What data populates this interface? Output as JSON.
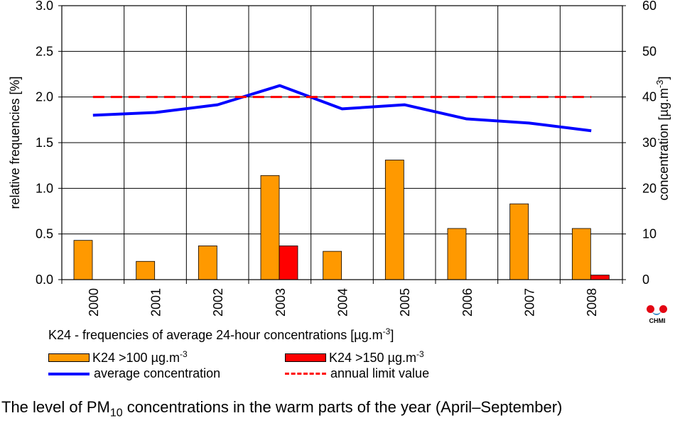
{
  "chart_data": {
    "type": "bar",
    "categories": [
      "2000",
      "2001",
      "2002",
      "2003",
      "2004",
      "2005",
      "2006",
      "2007",
      "2008"
    ],
    "series": [
      {
        "name": "K24 >100 µg.m-3",
        "axis": "left",
        "kind": "bar",
        "color": "#ff9900",
        "values": [
          0.43,
          0.2,
          0.37,
          1.14,
          0.31,
          1.31,
          0.56,
          0.83,
          0.56
        ]
      },
      {
        "name": "K24 >150 µg.m-3",
        "axis": "left",
        "kind": "bar",
        "color": "#ff0000",
        "values": [
          0.0,
          0.0,
          0.0,
          0.37,
          0.0,
          0.0,
          0.0,
          0.0,
          0.05
        ]
      },
      {
        "name": "average concentration",
        "axis": "right",
        "kind": "line",
        "color": "#0000ff",
        "values": [
          36.0,
          36.6,
          38.3,
          42.5,
          37.4,
          38.3,
          35.2,
          34.3,
          32.6
        ]
      },
      {
        "name": "annual limit value",
        "axis": "right",
        "kind": "dashed-line",
        "color": "#ff0000",
        "values": [
          40,
          40,
          40,
          40,
          40,
          40,
          40,
          40,
          40
        ]
      }
    ],
    "ylabel": "relative frequencies [%]",
    "ylim": [
      0,
      3.0
    ],
    "yticks": [
      "0.0",
      "0.5",
      "1.0",
      "1.5",
      "2.0",
      "2.5",
      "3.0"
    ],
    "y2label": "concentration [µg.m-3]",
    "y2lim": [
      0,
      60
    ],
    "y2ticks": [
      "0",
      "10",
      "20",
      "30",
      "40",
      "50",
      "60"
    ],
    "grid": true,
    "legend_position": "bottom"
  },
  "legend": {
    "title": "K24 - frequencies of average 24-hour concentrations [µg.m-3]",
    "items": [
      {
        "label": "K24 >100 µg.m-3",
        "color": "#ff9900",
        "kind": "bar"
      },
      {
        "label": "K24 >150 µg.m-3",
        "color": "#ff0000",
        "kind": "bar"
      },
      {
        "label": "average concentration",
        "color": "#0000ff",
        "kind": "line"
      },
      {
        "label": "annual limit value",
        "color": "#ff0000",
        "kind": "dashed-line"
      }
    ]
  },
  "caption": {
    "prefix": "The level of PM",
    "sub": "10",
    "suffix": " concentrations in the warm parts of the year (April–September)"
  },
  "logo": {
    "text": "CHMI",
    "colors": [
      "#e30613",
      "#3a8cc8"
    ]
  }
}
